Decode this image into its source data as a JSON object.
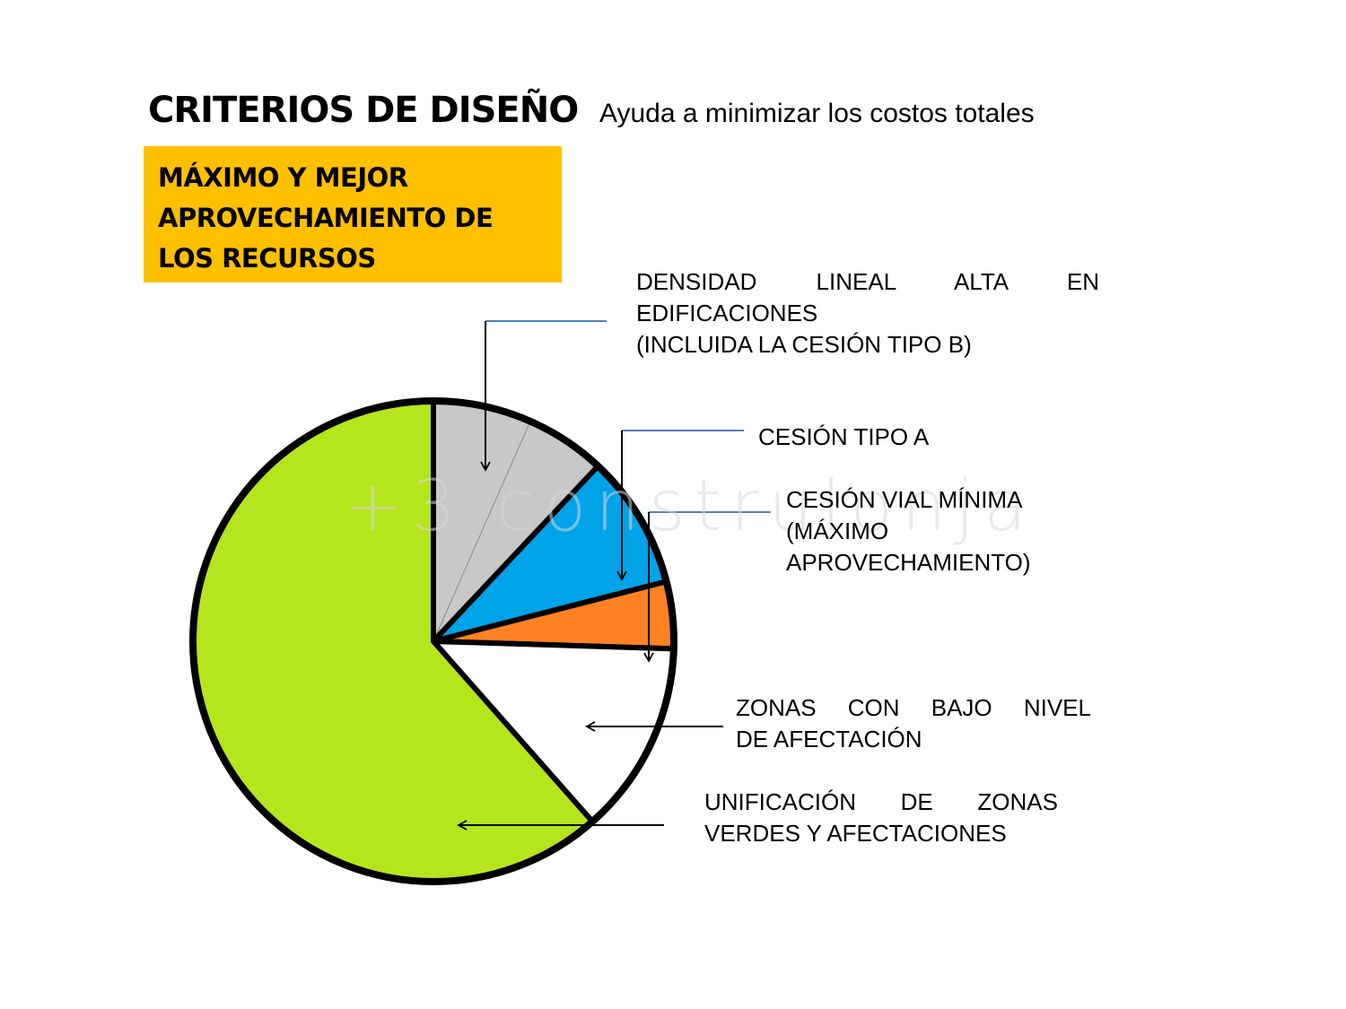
{
  "title": "CRITERIOS DE DISEÑO",
  "subtitle": "Ayuda a minimizar los costos totales",
  "highlight_box": {
    "color": "#FFC000",
    "lines": [
      "MÁXIMO Y MEJOR",
      "APROVECHAMIENTO DE",
      "LOS RECURSOS"
    ]
  },
  "watermark": "+3 construlonja",
  "chart_data": {
    "type": "pie",
    "segments": [
      {
        "key": "densidad",
        "value": 12,
        "color": "#C8C8C8"
      },
      {
        "key": "cesion_a",
        "value": 9,
        "color": "#00A3E8"
      },
      {
        "key": "vial",
        "value": 4.5,
        "color": "#FF8124"
      },
      {
        "key": "bajo_nivel",
        "value": 13,
        "color": "#FFFFFF"
      },
      {
        "key": "verdes",
        "value": 61.5,
        "color": "#B5E51D"
      }
    ]
  },
  "labels": {
    "densidad": {
      "lines": [
        "DENSIDAD LINEAL ALTA EN",
        "EDIFICACIONES",
        "(INCLUIDA LA  CESIÓN TIPO B)"
      ]
    },
    "cesion_a": {
      "lines": [
        "CESIÓN TIPO A"
      ]
    },
    "vial": {
      "lines": [
        "CESIÓN VIAL MÍNIMA",
        "(MÁXIMO",
        "APROVECHAMIENTO)"
      ]
    },
    "bajo_nivel": {
      "lines": [
        "ZONAS CON BAJO NIVEL",
        "DE AFECTACIÓN"
      ]
    },
    "verdes": {
      "lines": [
        "UNIFICACIÓN DE ZONAS",
        "VERDES Y AFECTACIONES"
      ]
    }
  },
  "colors": {
    "leader_line": "#4F81BD",
    "outline": "#000000"
  }
}
